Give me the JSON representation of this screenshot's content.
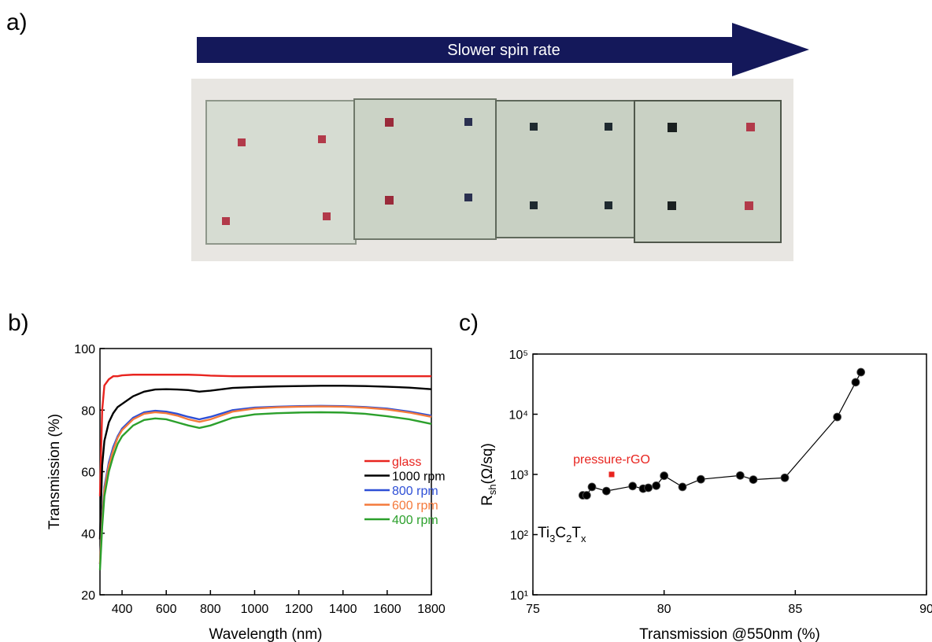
{
  "panel_a": {
    "label": "a)",
    "arrow_text": "Slower spin rate"
  },
  "chart_data": [
    {
      "type": "line",
      "panel_label": "b)",
      "x_label": "Wavelength (nm)",
      "y_label": "Transmission (%)",
      "x": [
        300,
        310,
        320,
        340,
        360,
        380,
        400,
        450,
        500,
        550,
        600,
        650,
        700,
        750,
        800,
        900,
        1000,
        1100,
        1200,
        1300,
        1400,
        1500,
        1600,
        1700,
        1800
      ],
      "xlim": [
        300,
        1800
      ],
      "xticks": [
        400,
        600,
        800,
        1000,
        1200,
        1400,
        1600,
        1800
      ],
      "ylim": [
        20,
        100
      ],
      "yticks": [
        20,
        40,
        60,
        80,
        100
      ],
      "series": [
        {
          "name": "glass",
          "color": "#e8241f",
          "values": [
            52,
            80,
            88,
            90,
            91,
            91,
            91.3,
            91.5,
            91.5,
            91.5,
            91.5,
            91.5,
            91.5,
            91.4,
            91.2,
            91,
            91,
            91,
            91,
            91,
            91,
            91,
            91,
            91,
            91
          ]
        },
        {
          "name": "1000 rpm",
          "color": "#000000",
          "values": [
            38,
            62,
            70,
            76,
            79,
            81,
            82,
            84.5,
            86,
            86.7,
            86.8,
            86.7,
            86.5,
            86,
            86.3,
            87.2,
            87.5,
            87.7,
            87.8,
            87.9,
            87.9,
            87.8,
            87.6,
            87.3,
            86.8
          ]
        },
        {
          "name": "800 rpm",
          "color": "#2e4fd6",
          "values": [
            30,
            45,
            55,
            63,
            68,
            71.5,
            74,
            77.5,
            79.3,
            79.8,
            79.5,
            78.8,
            77.8,
            77,
            77.8,
            80,
            80.8,
            81.1,
            81.3,
            81.4,
            81.3,
            81,
            80.5,
            79.5,
            78.2
          ]
        },
        {
          "name": "600 rpm",
          "color": "#f47a3c",
          "values": [
            30,
            44,
            54,
            62,
            67,
            71,
            73.5,
            77,
            78.8,
            79.3,
            79,
            78.2,
            77,
            76.2,
            77,
            79.5,
            80.5,
            80.9,
            81.1,
            81.2,
            81.1,
            80.8,
            80.2,
            79.2,
            77.8
          ]
        },
        {
          "name": "400 rpm",
          "color": "#2ca02c",
          "values": [
            28,
            42,
            52,
            60,
            65,
            69,
            71.5,
            75,
            76.8,
            77.3,
            77,
            76,
            75,
            74.2,
            75,
            77.5,
            78.6,
            79,
            79.2,
            79.3,
            79.2,
            78.8,
            78,
            77,
            75.5
          ]
        }
      ]
    },
    {
      "type": "scatter",
      "panel_label": "c)",
      "x_label": "Transmission @550nm (%)",
      "y_label": {
        "main": "R",
        "sub": "sh",
        "rest": "(Ω/sq)"
      },
      "ylog": true,
      "xlim": [
        75,
        90
      ],
      "xticks": [
        75,
        80,
        85,
        90
      ],
      "ylim": [
        10,
        100000
      ],
      "yticks": [
        {
          "value": 10,
          "label": "10¹"
        },
        {
          "value": 100,
          "label": "10²"
        },
        {
          "value": 1000,
          "label": "10³"
        },
        {
          "value": 10000,
          "label": "10⁴"
        },
        {
          "value": 100000,
          "label": "10⁵"
        }
      ],
      "annotation_parts": [
        "Ti",
        "3",
        "C",
        "2",
        "T",
        "x"
      ],
      "series": [
        {
          "color": "#000000",
          "marker": "circle",
          "connected": true,
          "x": [
            76.9,
            77.05,
            77.25,
            77.8,
            78.8,
            79.2,
            79.4,
            79.7,
            80.0,
            80.7,
            81.4,
            82.9,
            83.4,
            84.6,
            86.6,
            87.3,
            87.5
          ],
          "values": [
            450,
            450,
            620,
            530,
            640,
            580,
            600,
            650,
            950,
            620,
            830,
            960,
            820,
            880,
            9000,
            34000,
            50000
          ]
        },
        {
          "name": "pressure-rGO",
          "color": "#e8241f",
          "marker": "square",
          "connected": false,
          "x": [
            78
          ],
          "values": [
            1000
          ]
        }
      ]
    }
  ]
}
